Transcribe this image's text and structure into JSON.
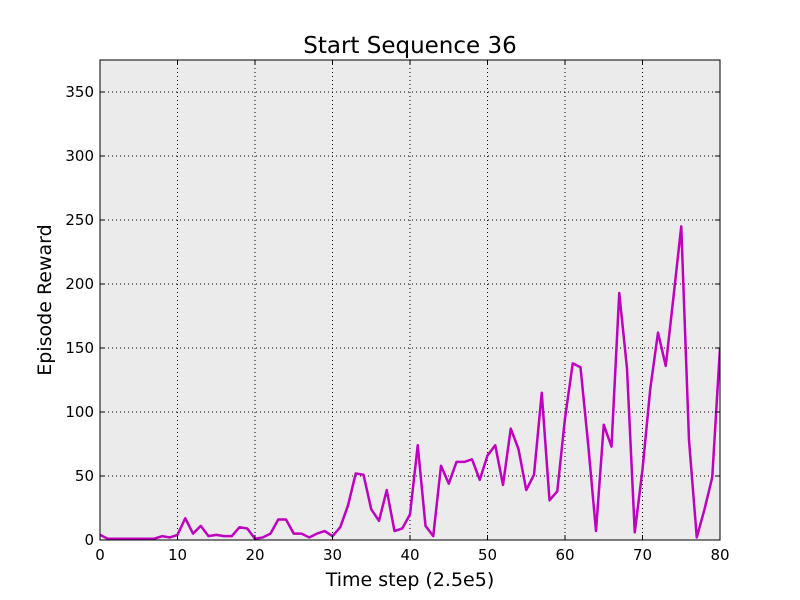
{
  "chart_data": {
    "type": "line",
    "title": "Start Sequence 36",
    "xlabel": "Time step (2.5e5)",
    "ylabel": "Episode Reward",
    "xlim": [
      0,
      80
    ],
    "ylim": [
      0,
      375
    ],
    "xticks": [
      0,
      10,
      20,
      30,
      40,
      50,
      60,
      70,
      80
    ],
    "yticks": [
      0,
      50,
      100,
      150,
      200,
      250,
      300,
      350
    ],
    "grid": true,
    "grid_style": "dotted",
    "background": "#ebebeb",
    "series": [
      {
        "color": "#bf00bf",
        "x": [
          0,
          1,
          2,
          3,
          4,
          5,
          6,
          7,
          8,
          9,
          10,
          11,
          12,
          13,
          14,
          15,
          16,
          17,
          18,
          19,
          20,
          21,
          22,
          23,
          24,
          25,
          26,
          27,
          28,
          29,
          30,
          31,
          32,
          33,
          34,
          35,
          36,
          37,
          38,
          39,
          40,
          41,
          42,
          43,
          44,
          45,
          46,
          47,
          48,
          49,
          50,
          51,
          52,
          53,
          54,
          55,
          56,
          57,
          58,
          59,
          60,
          61,
          62,
          63,
          64,
          65,
          66,
          67,
          68,
          69,
          70,
          71,
          72,
          73,
          74,
          75,
          76,
          77,
          78,
          79,
          80
        ],
        "values": [
          4,
          1,
          1,
          1,
          1,
          1,
          1,
          1,
          3,
          2,
          4,
          17,
          5,
          11,
          3,
          4,
          3,
          3,
          10,
          9,
          1,
          2,
          5,
          16,
          16,
          5,
          5,
          2,
          5,
          7,
          3,
          10,
          27,
          52,
          51,
          24,
          15,
          39,
          7,
          9,
          20,
          74,
          11,
          3,
          58,
          44,
          61,
          61,
          63,
          47,
          66,
          74,
          43,
          87,
          71,
          39,
          51,
          115,
          31,
          38,
          95,
          138,
          135,
          74,
          7,
          90,
          73,
          193,
          134,
          6,
          55,
          118,
          162,
          136,
          190,
          245,
          78,
          2,
          24,
          49,
          150
        ]
      }
    ]
  }
}
